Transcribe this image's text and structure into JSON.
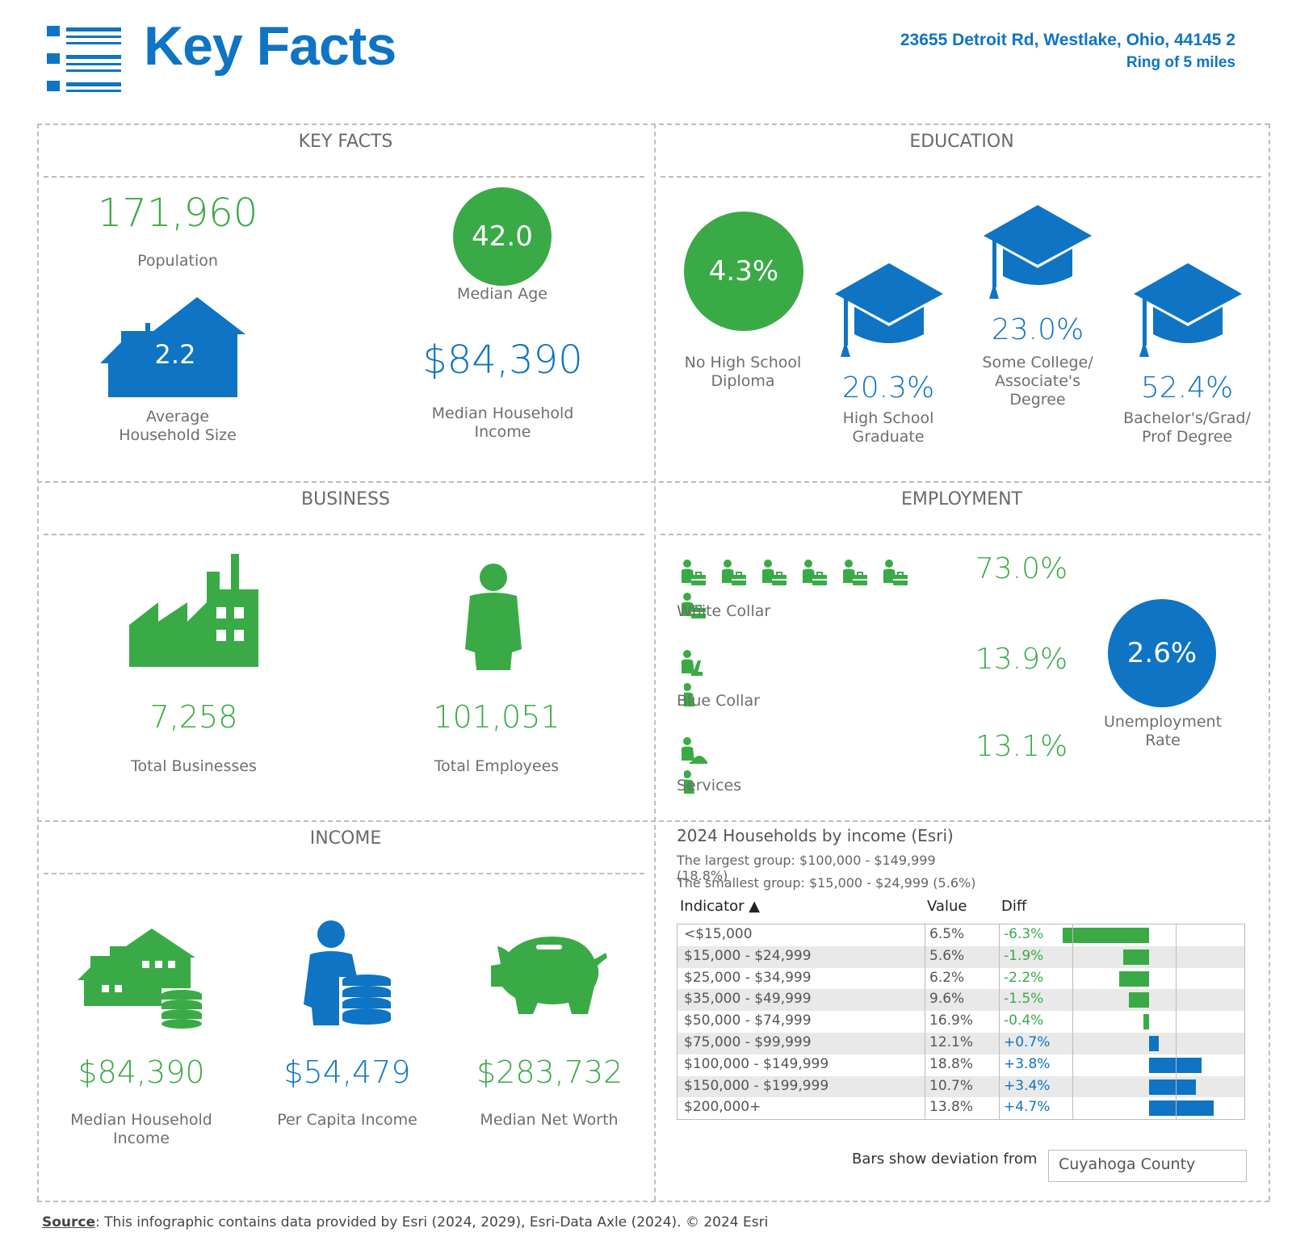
{
  "header": {
    "title": "Key Facts",
    "address": "23655 Detroit Rd, Westlake, Ohio, 44145 2",
    "ring": "Ring of 5 miles"
  },
  "colors": {
    "green": "#3aaa47",
    "blue": "#0e74c3",
    "grey": "#6e6e6e"
  },
  "key_facts": {
    "title": "KEY FACTS",
    "population_value": "171,960",
    "population_label": "Population",
    "median_age_value": "42.0",
    "median_age_label": "Median Age",
    "household_size_value": "2.2",
    "household_size_label_1": "Average",
    "household_size_label_2": "Household Size",
    "median_income_value": "$84,390",
    "median_income_label_1": "Median Household",
    "median_income_label_2": "Income"
  },
  "education": {
    "title": "EDUCATION",
    "no_hs_value": "4.3%",
    "no_hs_label_1": "No High School",
    "no_hs_label_2": "Diploma",
    "hs_value": "20.3%",
    "hs_label_1": "High School",
    "hs_label_2": "Graduate",
    "some_college_value": "23.0%",
    "some_college_label_1": "Some College/",
    "some_college_label_2": "Associate's",
    "some_college_label_3": "Degree",
    "bachelor_value": "52.4%",
    "bachelor_label_1": "Bachelor's/Grad/",
    "bachelor_label_2": "Prof Degree"
  },
  "business": {
    "title": "BUSINESS",
    "total_businesses_value": "7,258",
    "total_businesses_label": "Total Businesses",
    "total_employees_value": "101,051",
    "total_employees_label": "Total Employees"
  },
  "employment": {
    "title": "EMPLOYMENT",
    "white_collar_value": "73.0%",
    "white_collar_label": "White Collar",
    "blue_collar_value": "13.9%",
    "blue_collar_label": "Blue Collar",
    "services_value": "13.1%",
    "services_label": "Services",
    "unemployment_value": "2.6%",
    "unemployment_label_1": "Unemployment",
    "unemployment_label_2": "Rate"
  },
  "income": {
    "title": "INCOME",
    "median_household_value": "$84,390",
    "median_household_label_1": "Median Household",
    "median_household_label_2": "Income",
    "per_capita_value": "$54,479",
    "per_capita_label": "Per Capita Income",
    "net_worth_value": "$283,732",
    "net_worth_label": "Median Net Worth"
  },
  "households_table": {
    "title": "2024 Households by income (Esri)",
    "largest": "The largest group: $100,000 - $149,999 (18.8%)",
    "smallest": "The smallest group: $15,000 - $24,999 (5.6%)",
    "col_indicator": "Indicator ▲",
    "col_value": "Value",
    "col_diff": "Diff",
    "footer_label": "Bars show deviation from",
    "footer_select": "Cuyahoga County"
  },
  "chart_data": {
    "type": "bar",
    "title": "2024 Households by income (Esri)",
    "categories": [
      "<$15,000",
      "$15,000 - $24,999",
      "$25,000 - $34,999",
      "$35,000 - $49,999",
      "$50,000 - $74,999",
      "$75,000 - $99,999",
      "$100,000 - $149,999",
      "$150,000 - $199,999",
      "$200,000+"
    ],
    "values": [
      "6.5%",
      "5.6%",
      "6.2%",
      "9.6%",
      "16.9%",
      "12.1%",
      "18.8%",
      "10.7%",
      "13.8%"
    ],
    "diff_labels": [
      "-6.3%",
      "-1.9%",
      "-2.2%",
      "-1.5%",
      "-0.4%",
      "+0.7%",
      "+3.8%",
      "+3.4%",
      "+4.7%"
    ],
    "diffs": [
      -6.3,
      -1.9,
      -2.2,
      -1.5,
      -0.4,
      0.7,
      3.8,
      3.4,
      4.7
    ]
  },
  "footer": {
    "source_label": "Source",
    "source_text": ": This infographic contains data provided by Esri (2024, 2029), Esri-Data Axle (2024).  © 2024 Esri"
  }
}
